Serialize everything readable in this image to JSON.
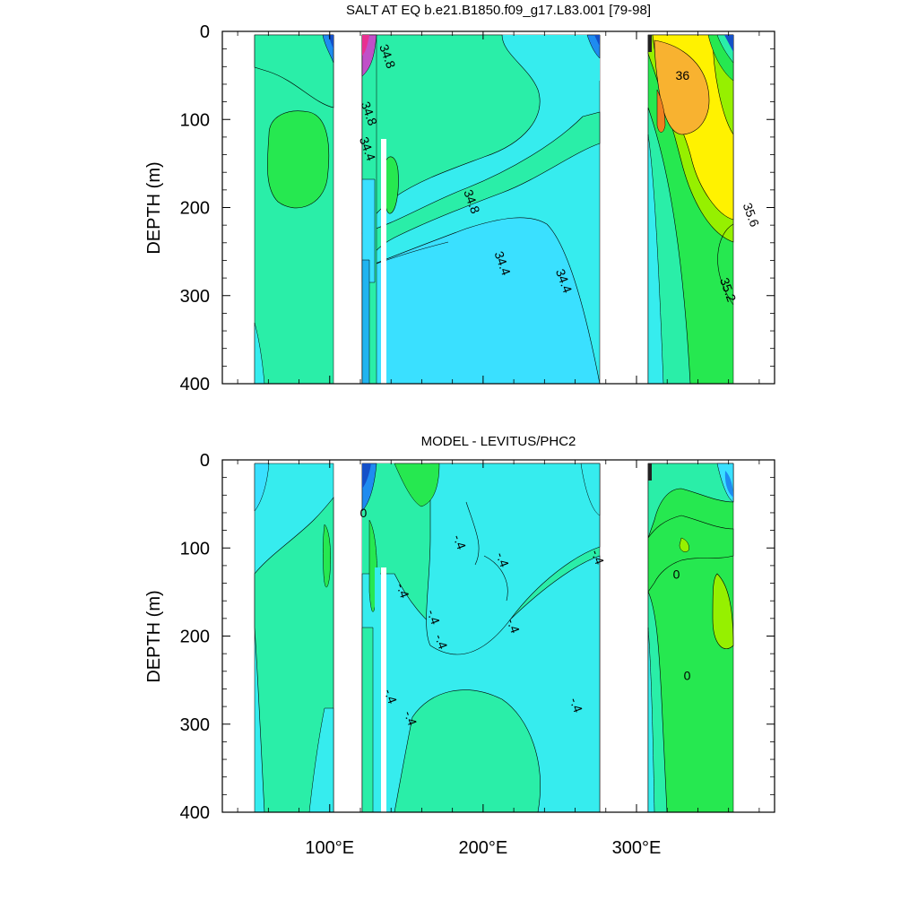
{
  "chart_data": [
    {
      "type": "contour",
      "title": "SALT AT EQ b.e21.B1850.f09_g17.L83.001 [79-98]",
      "ylabel": "DEPTH (m)",
      "yticks": [
        "0",
        "100",
        "200",
        "300",
        "400"
      ],
      "ylim": [
        0,
        400
      ],
      "xlim": [
        30,
        390
      ],
      "y_inverted": true,
      "contour_labels": [
        {
          "text": "34.8",
          "lon": 135,
          "depth": 30
        },
        {
          "text": "34.8",
          "lon": 123,
          "depth": 95
        },
        {
          "text": "34.4",
          "lon": 122,
          "depth": 135
        },
        {
          "text": "34.8",
          "lon": 190,
          "depth": 195
        },
        {
          "text": "34.4",
          "lon": 210,
          "depth": 265
        },
        {
          "text": "34.4",
          "lon": 250,
          "depth": 285
        },
        {
          "text": "36",
          "lon": 330,
          "depth": 55
        },
        {
          "text": "35.6",
          "lon": 372,
          "depth": 210
        },
        {
          "text": "35.2",
          "lon": 357,
          "depth": 295
        }
      ]
    },
    {
      "type": "contour",
      "title": "MODEL - LEVITUS/PHC2",
      "ylabel": "DEPTH (m)",
      "yticks": [
        "0",
        "100",
        "200",
        "300",
        "400"
      ],
      "xticks": [
        "100°E",
        "200°E",
        "300°E"
      ],
      "xtick_values": [
        100,
        200,
        300
      ],
      "ylim": [
        0,
        400
      ],
      "xlim": [
        30,
        390
      ],
      "y_inverted": true,
      "contour_labels": [
        {
          "text": "0",
          "lon": 122,
          "depth": 65
        },
        {
          "text": "-.4",
          "lon": 182,
          "depth": 95
        },
        {
          "text": "-.4",
          "lon": 210,
          "depth": 115
        },
        {
          "text": "-.4",
          "lon": 272,
          "depth": 112
        },
        {
          "text": "-.4",
          "lon": 145,
          "depth": 150
        },
        {
          "text": "-.4",
          "lon": 165,
          "depth": 180
        },
        {
          "text": "-.4",
          "lon": 170,
          "depth": 208
        },
        {
          "text": "-.4",
          "lon": 217,
          "depth": 190
        },
        {
          "text": "-.4",
          "lon": 137,
          "depth": 270
        },
        {
          "text": "-.4",
          "lon": 150,
          "depth": 295
        },
        {
          "text": "-.4",
          "lon": 258,
          "depth": 280
        },
        {
          "text": "0",
          "lon": 326,
          "depth": 135
        },
        {
          "text": "0",
          "lon": 333,
          "depth": 250
        }
      ]
    }
  ],
  "colors": {
    "bg_field": "#36ECEE",
    "teal_green": "#2AEEA8",
    "green": "#26E850",
    "light_blue": "#3AE0FF",
    "yellow": "#FFF200",
    "orange": "#F8B230",
    "lime": "#96F000",
    "deep_blue": "#1450C8"
  }
}
